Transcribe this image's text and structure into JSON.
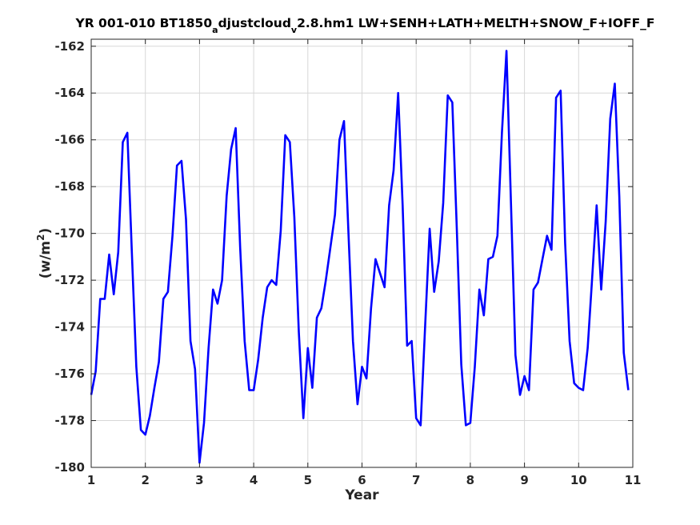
{
  "chart_data": {
    "type": "line",
    "title": {
      "prefix": "YR 001-010 BT1850",
      "sub1": "a",
      "mid": "djustcloud",
      "sub2": "v",
      "suffix": "2.8.hm1 LW+SENH+LATH+MELTH+SNOW_F+IOFF_F"
    },
    "xlabel": "Year",
    "ylabel": {
      "prefix": "(w/m",
      "sup": "2",
      "suffix": ")"
    },
    "xlim": [
      1,
      11
    ],
    "ylim": [
      -180,
      -161.7
    ],
    "xticks": [
      1,
      2,
      3,
      4,
      5,
      6,
      7,
      8,
      9,
      10,
      11
    ],
    "yticks": [
      -180,
      -178,
      -176,
      -174,
      -172,
      -170,
      -168,
      -166,
      -164,
      -162
    ],
    "grid": true,
    "color": "#0000ff",
    "series": [
      {
        "x": [
          1.0,
          1.083,
          1.167,
          1.25,
          1.333,
          1.417,
          1.5,
          1.583,
          1.667,
          1.75,
          1.833,
          1.917,
          2.0,
          2.083,
          2.167,
          2.25,
          2.333,
          2.417,
          2.5,
          2.583,
          2.667,
          2.75,
          2.833,
          2.917,
          3.0,
          3.083,
          3.167,
          3.25,
          3.333,
          3.417,
          3.5,
          3.583,
          3.667,
          3.75,
          3.833,
          3.917,
          4.0,
          4.083,
          4.167,
          4.25,
          4.333,
          4.417,
          4.5,
          4.583,
          4.667,
          4.75,
          4.833,
          4.917,
          5.0,
          5.083,
          5.167,
          5.25,
          5.333,
          5.417,
          5.5,
          5.583,
          5.667,
          5.75,
          5.833,
          5.917,
          6.0,
          6.083,
          6.167,
          6.25,
          6.333,
          6.417,
          6.5,
          6.583,
          6.667,
          6.75,
          6.833,
          6.917,
          7.0,
          7.083,
          7.167,
          7.25,
          7.333,
          7.417,
          7.5,
          7.583,
          7.667,
          7.75,
          7.833,
          7.917,
          8.0,
          8.083,
          8.167,
          8.25,
          8.333,
          8.417,
          8.5,
          8.583,
          8.667,
          8.75,
          8.833,
          8.917,
          9.0,
          9.083,
          9.167,
          9.25,
          9.333,
          9.417,
          9.5,
          9.583,
          9.667,
          9.75,
          9.833,
          9.917,
          10.0,
          10.083,
          10.167,
          10.25,
          10.333,
          10.417,
          10.5,
          10.583,
          10.667,
          10.75,
          10.833,
          10.917
        ],
        "y": [
          -176.9,
          -175.9,
          -172.8,
          -172.8,
          -170.9,
          -172.6,
          -170.8,
          -166.1,
          -165.7,
          -170.8,
          -175.7,
          -178.4,
          -178.6,
          -177.8,
          -176.6,
          -175.5,
          -172.8,
          -172.5,
          -170.1,
          -167.1,
          -166.9,
          -169.4,
          -174.6,
          -175.8,
          -179.8,
          -178.1,
          -174.9,
          -172.4,
          -173.0,
          -172.0,
          -168.4,
          -166.4,
          -165.5,
          -170.6,
          -174.6,
          -176.7,
          -176.7,
          -175.4,
          -173.6,
          -172.3,
          -172.0,
          -172.2,
          -169.9,
          -165.8,
          -166.1,
          -169.3,
          -174.2,
          -177.9,
          -174.9,
          -176.6,
          -173.6,
          -173.2,
          -172.0,
          -170.6,
          -169.2,
          -166.0,
          -165.2,
          -170.0,
          -174.6,
          -177.3,
          -175.7,
          -176.2,
          -173.2,
          -171.1,
          -171.7,
          -172.3,
          -168.8,
          -167.3,
          -164.0,
          -168.8,
          -174.8,
          -174.6,
          -177.9,
          -178.2,
          -173.9,
          -169.8,
          -172.5,
          -171.2,
          -168.7,
          -164.1,
          -164.4,
          -169.8,
          -175.6,
          -178.2,
          -178.1,
          -175.7,
          -172.4,
          -173.5,
          -171.1,
          -171.0,
          -170.1,
          -165.7,
          -162.2,
          -168.7,
          -175.2,
          -176.9,
          -176.1,
          -176.7,
          -172.4,
          -172.1,
          -171.1,
          -170.1,
          -170.7,
          -164.2,
          -163.9,
          -170.4,
          -174.6,
          -176.4,
          -176.6,
          -176.7,
          -174.9,
          -171.9,
          -168.8,
          -172.4,
          -169.5,
          -165.1,
          -163.6,
          -168.4,
          -175.1,
          -176.7
        ]
      }
    ]
  }
}
